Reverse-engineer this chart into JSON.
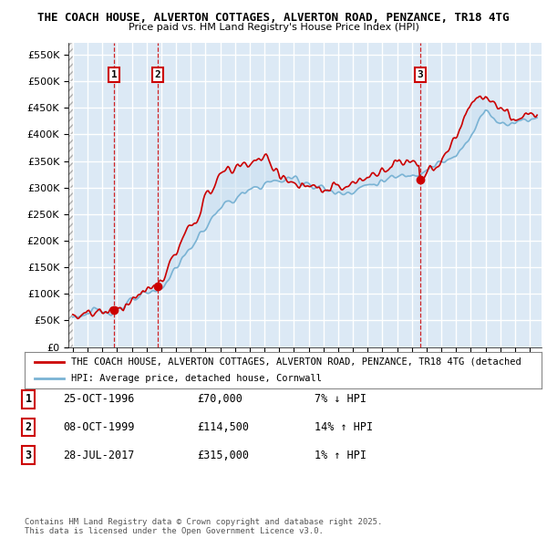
{
  "title": "THE COACH HOUSE, ALVERTON COTTAGES, ALVERTON ROAD, PENZANCE, TR18 4TG",
  "subtitle": "Price paid vs. HM Land Registry's House Price Index (HPI)",
  "yticks": [
    0,
    50000,
    100000,
    150000,
    200000,
    250000,
    300000,
    350000,
    400000,
    450000,
    500000,
    550000
  ],
  "ytick_labels": [
    "£0",
    "£50K",
    "£100K",
    "£150K",
    "£200K",
    "£250K",
    "£300K",
    "£350K",
    "£400K",
    "£450K",
    "£500K",
    "£550K"
  ],
  "xmin": 1993.7,
  "xmax": 2025.8,
  "ymin": 0,
  "ymax": 572000,
  "sale_dates": [
    1996.81,
    1999.77,
    2017.56
  ],
  "sale_prices": [
    70000,
    114500,
    315000
  ],
  "sale_labels": [
    "1",
    "2",
    "3"
  ],
  "hpi_color": "#7ab3d4",
  "hpi_fill_color": "#c8dff0",
  "price_color": "#cc0000",
  "legend_entries": [
    "THE COACH HOUSE, ALVERTON COTTAGES, ALVERTON ROAD, PENZANCE, TR18 4TG (detached",
    "HPI: Average price, detached house, Cornwall"
  ],
  "table_rows": [
    {
      "num": "1",
      "date": "25-OCT-1996",
      "price": "£70,000",
      "change": "7% ↓ HPI"
    },
    {
      "num": "2",
      "date": "08-OCT-1999",
      "price": "£114,500",
      "change": "14% ↑ HPI"
    },
    {
      "num": "3",
      "date": "28-JUL-2017",
      "price": "£315,000",
      "change": "1% ↑ HPI"
    }
  ],
  "footer": "Contains HM Land Registry data © Crown copyright and database right 2025.\nThis data is licensed under the Open Government Licence v3.0.",
  "background_color": "#ffffff",
  "grid_color": "#c8d8e8",
  "label_box_color": "#cc0000"
}
